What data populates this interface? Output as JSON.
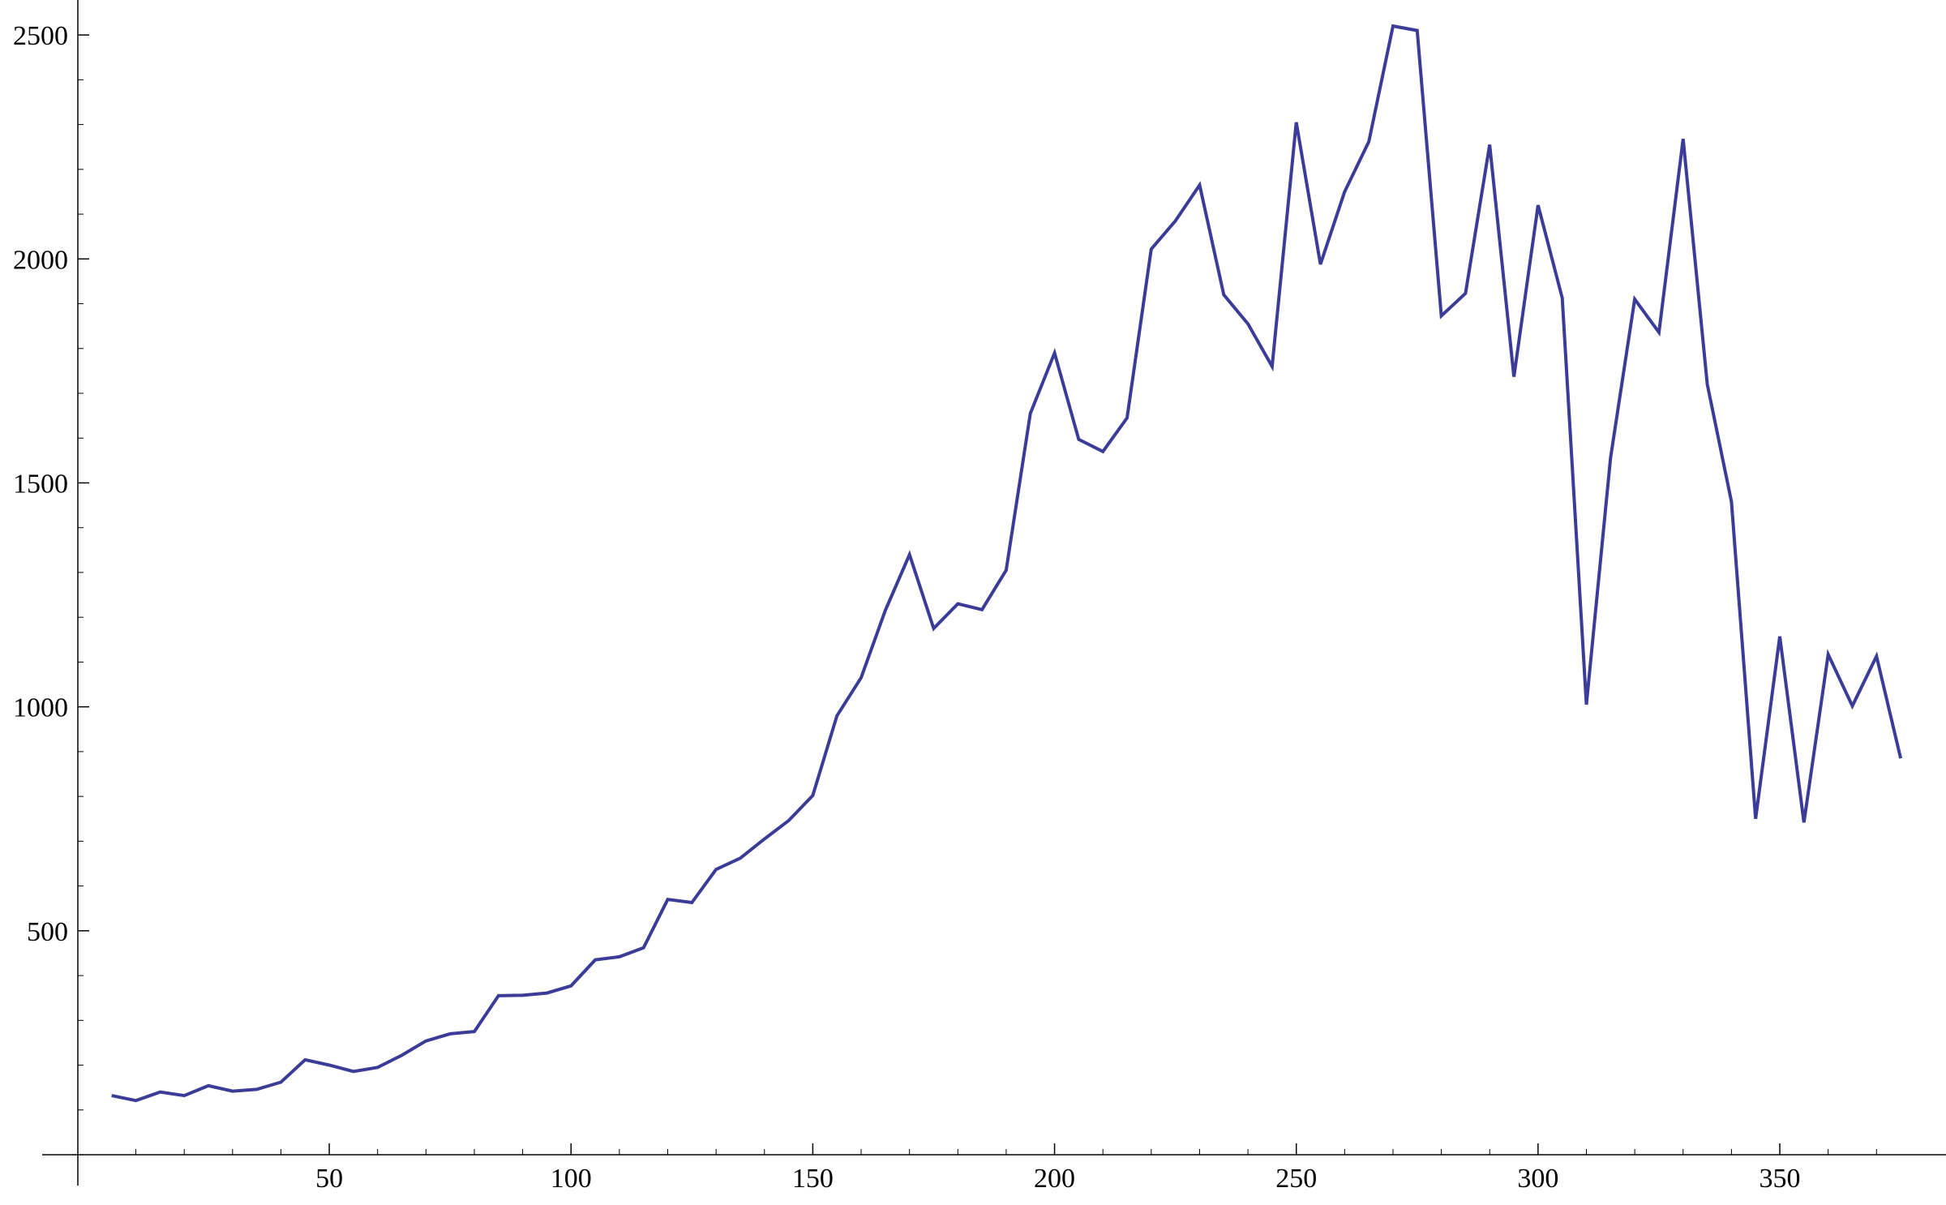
{
  "chart_data": {
    "type": "line",
    "title": "",
    "xlabel": "",
    "ylabel": "",
    "xlim": [
      -2,
      378
    ],
    "ylim": [
      0,
      2560
    ],
    "x_ticks": [
      50,
      100,
      150,
      200,
      250,
      300,
      350
    ],
    "y_ticks": [
      500,
      1000,
      1500,
      2000,
      2500
    ],
    "x_ticks_text": [
      "50",
      "100",
      "150",
      "200",
      "250",
      "300",
      "350"
    ],
    "y_ticks_text": [
      "500",
      "1000",
      "1500",
      "2000",
      "2500"
    ],
    "grid": false,
    "legend": "none",
    "series": [
      {
        "color": "#3b3b98",
        "x": [
          5,
          10,
          15,
          20,
          25,
          30,
          35,
          40,
          45,
          50,
          55,
          60,
          65,
          70,
          75,
          80,
          85,
          90,
          95,
          100,
          105,
          110,
          115,
          120,
          125,
          130,
          135,
          140,
          145,
          150,
          155,
          160,
          165,
          170,
          175,
          180,
          185,
          190,
          195,
          200,
          205,
          210,
          215,
          220,
          225,
          230,
          235,
          240,
          245,
          250,
          255,
          260,
          265,
          270,
          275,
          280,
          285,
          290,
          295,
          300,
          305,
          310,
          315,
          320,
          325,
          330,
          335,
          340,
          345,
          350,
          355,
          360,
          365,
          370,
          375
        ],
        "y": [
          132,
          121,
          140,
          132,
          154,
          142,
          146,
          162,
          212,
          200,
          186,
          195,
          222,
          254,
          270,
          275,
          355,
          356,
          361,
          377,
          435,
          442,
          462,
          570,
          563,
          637,
          662,
          705,
          746,
          802,
          980,
          1065,
          1215,
          1340,
          1175,
          1230,
          1217,
          1305,
          1655,
          1790,
          1597,
          1570,
          1645,
          2022,
          2085,
          2165,
          1920,
          1855,
          1760,
          2305,
          1988,
          2150,
          2262,
          2520,
          2510,
          1873,
          1923,
          2255,
          1737,
          2120,
          1913,
          1005,
          1556,
          1910,
          1836,
          2268,
          1720,
          1458,
          750,
          1157,
          742,
          1117,
          1002,
          1113,
          885
        ]
      }
    ]
  }
}
